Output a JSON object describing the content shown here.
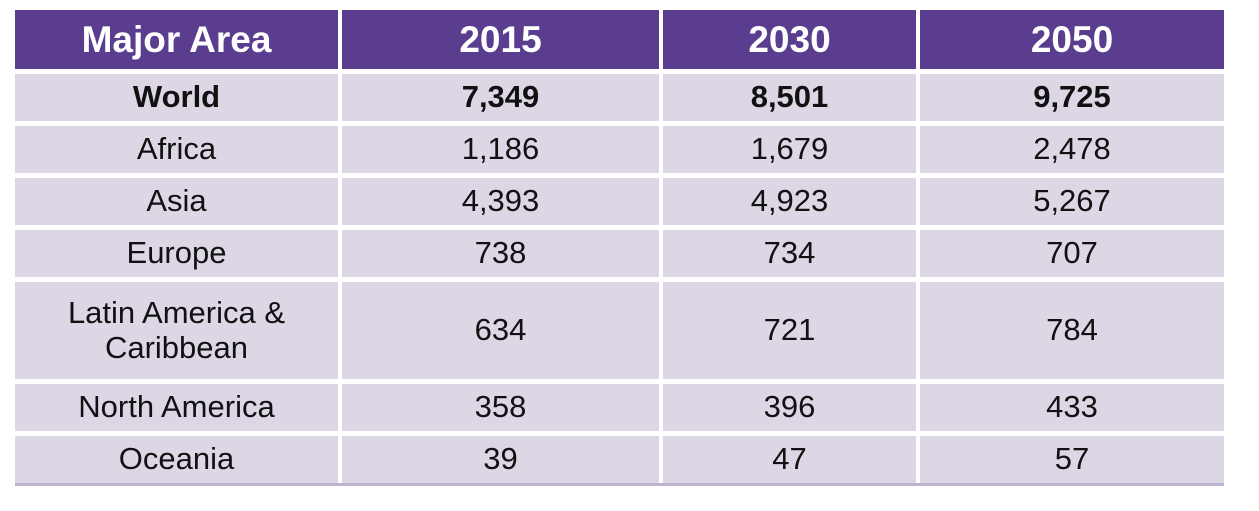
{
  "chart_data": {
    "type": "table",
    "columns": [
      "Major Area",
      "2015",
      "2030",
      "2050"
    ],
    "rows": [
      {
        "area": "World",
        "values": [
          "7,349",
          "8,501",
          "9,725"
        ]
      },
      {
        "area": "Africa",
        "values": [
          "1,186",
          "1,679",
          "2,478"
        ]
      },
      {
        "area": "Asia",
        "values": [
          "4,393",
          "4,923",
          "5,267"
        ]
      },
      {
        "area": "Europe",
        "values": [
          "738",
          "734",
          "707"
        ]
      },
      {
        "area": "Latin America & Caribbean",
        "values": [
          "634",
          "721",
          "784"
        ]
      },
      {
        "area": "North America",
        "values": [
          "358",
          "396",
          "433"
        ]
      },
      {
        "area": "Oceania",
        "values": [
          "39",
          "47",
          "57"
        ]
      }
    ]
  },
  "colors": {
    "header_bg": "#5b3d8f",
    "header_text": "#ffffff",
    "row_bg": "#ddd7e5",
    "body_text": "#111111",
    "table_border": "#bfb3d2"
  }
}
